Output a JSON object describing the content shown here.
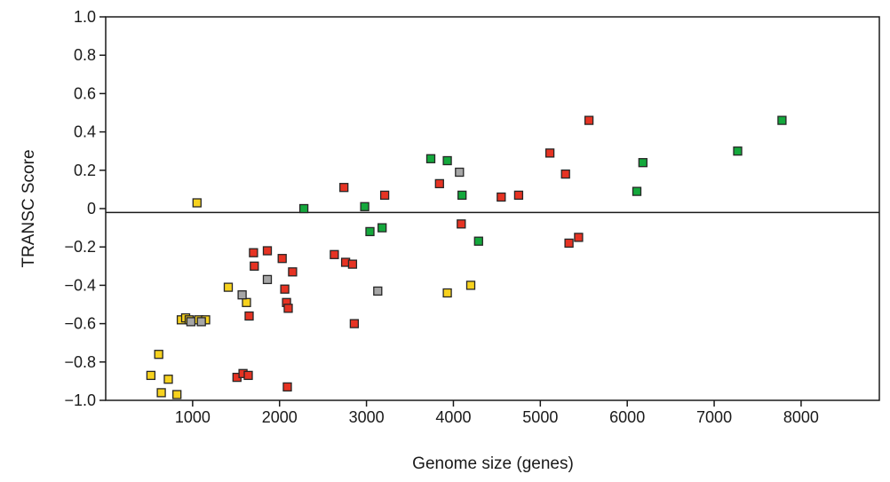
{
  "chart_data": {
    "type": "scatter",
    "title": "",
    "xlabel": "Genome size (genes)",
    "ylabel": "TRANSC Score",
    "xlim": [
      0,
      8900
    ],
    "ylim": [
      -1.0,
      1.0
    ],
    "x_ticks": [
      1000,
      2000,
      3000,
      4000,
      5000,
      6000,
      7000,
      8000
    ],
    "y_ticks": [
      1.0,
      0.8,
      0.6,
      0.4,
      0.2,
      0,
      -0.2,
      -0.4,
      -0.6,
      -0.8,
      -1.0
    ],
    "y_tick_labels": [
      "1.0",
      "0.8",
      "0.6",
      "0.4",
      "0.2",
      "0",
      "−0.2",
      "−0.4",
      "−0.6",
      "−0.8",
      "−1.0"
    ],
    "reference_line_y": -0.02,
    "grid": false,
    "legend": false,
    "colors": {
      "red": "#e63323",
      "green": "#14a83c",
      "yellow": "#f7d21e",
      "gray": "#a6a6a6",
      "outline": "#262626"
    },
    "series": [
      {
        "color": "red",
        "points": [
          [
            1510,
            -0.88
          ],
          [
            1580,
            -0.86
          ],
          [
            1640,
            -0.87
          ],
          [
            1650,
            -0.56
          ],
          [
            1700,
            -0.23
          ],
          [
            1710,
            -0.3
          ],
          [
            1860,
            -0.22
          ],
          [
            2030,
            -0.26
          ],
          [
            2060,
            -0.42
          ],
          [
            2080,
            -0.49
          ],
          [
            2090,
            -0.93
          ],
          [
            2100,
            -0.52
          ],
          [
            2150,
            -0.33
          ],
          [
            2630,
            -0.24
          ],
          [
            2740,
            0.11
          ],
          [
            2760,
            -0.28
          ],
          [
            2840,
            -0.29
          ],
          [
            2860,
            -0.6
          ],
          [
            3210,
            0.07
          ],
          [
            3840,
            0.13
          ],
          [
            4090,
            -0.08
          ],
          [
            4550,
            0.06
          ],
          [
            4750,
            0.07
          ],
          [
            5110,
            0.29
          ],
          [
            5290,
            0.18
          ],
          [
            5330,
            -0.18
          ],
          [
            5440,
            -0.15
          ],
          [
            5560,
            0.46
          ]
        ]
      },
      {
        "color": "green",
        "points": [
          [
            2280,
            0.0
          ],
          [
            2980,
            0.01
          ],
          [
            3040,
            -0.12
          ],
          [
            3180,
            -0.1
          ],
          [
            3740,
            0.26
          ],
          [
            3930,
            0.25
          ],
          [
            4100,
            0.07
          ],
          [
            4290,
            -0.17
          ],
          [
            6110,
            0.09
          ],
          [
            6180,
            0.24
          ],
          [
            7270,
            0.3
          ],
          [
            7780,
            0.46
          ]
        ]
      },
      {
        "color": "yellow",
        "points": [
          [
            520,
            -0.87
          ],
          [
            610,
            -0.76
          ],
          [
            640,
            -0.96
          ],
          [
            720,
            -0.89
          ],
          [
            820,
            -0.97
          ],
          [
            870,
            -0.58
          ],
          [
            920,
            -0.57
          ],
          [
            960,
            -0.58
          ],
          [
            1050,
            0.03
          ],
          [
            1070,
            -0.58
          ],
          [
            1150,
            -0.58
          ],
          [
            1410,
            -0.41
          ],
          [
            1620,
            -0.49
          ],
          [
            3930,
            -0.44
          ],
          [
            4200,
            -0.4
          ]
        ]
      },
      {
        "color": "gray",
        "points": [
          [
            980,
            -0.59
          ],
          [
            1100,
            -0.59
          ],
          [
            1570,
            -0.45
          ],
          [
            1860,
            -0.37
          ],
          [
            3130,
            -0.43
          ],
          [
            4070,
            0.19
          ]
        ]
      }
    ]
  }
}
